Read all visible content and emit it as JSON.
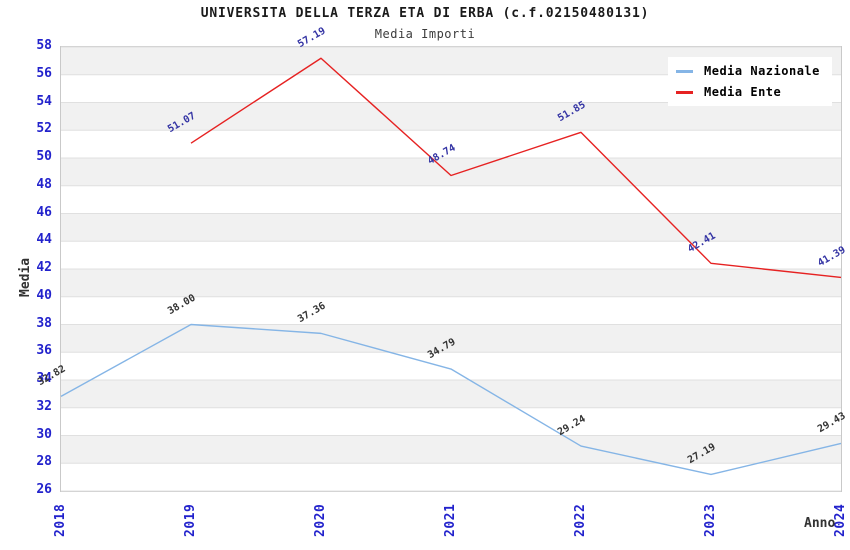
{
  "header": {
    "title": "UNIVERSITA DELLA TERZA ETA DI ERBA (c.f.02150480131)",
    "subtitle": "Media Importi"
  },
  "chart_data": {
    "type": "line",
    "title": "UNIVERSITA DELLA TERZA ETA DI ERBA (c.f.02150480131)",
    "subtitle": "Media Importi",
    "x_categories": [
      "2018",
      "2019",
      "2020",
      "2021",
      "2022",
      "2023",
      "2024"
    ],
    "series": [
      {
        "name": "Media Nazionale",
        "color": "#85b5e6",
        "label_color": "#333333",
        "values": [
          32.82,
          38.0,
          37.36,
          34.79,
          29.24,
          27.19,
          29.43
        ],
        "labels": [
          "32.82",
          "38.00",
          "37.36",
          "34.79",
          "29.24",
          "27.19",
          "29.43"
        ]
      },
      {
        "name": "Media Ente",
        "color": "#e62222",
        "label_color": "#3434a4",
        "values": [
          null,
          51.07,
          57.19,
          48.74,
          51.85,
          42.41,
          41.39
        ],
        "labels": [
          null,
          "51.07",
          "57.19",
          "48.74",
          "51.85",
          "42.41",
          "41.39"
        ]
      }
    ],
    "xlabel": "Anno",
    "ylabel": "Media",
    "ylim": [
      26,
      58
    ],
    "ytick_step": 2,
    "y_ticks": [
      26,
      28,
      30,
      32,
      34,
      36,
      38,
      40,
      42,
      44,
      46,
      48,
      50,
      52,
      54,
      56,
      58
    ],
    "grid": "horizontal-bands",
    "legend_position": "top-right"
  },
  "colors": {
    "tick_label": "#2222cc",
    "band": "#f1f1f1",
    "band_alt": "#ffffff",
    "grid_line": "#e0e0e0",
    "spine": "#c9c9c9",
    "title": "#1a1a1a",
    "subtitle": "#3c3c3c",
    "axis_title": "#333333",
    "legend_text": "#000000"
  }
}
